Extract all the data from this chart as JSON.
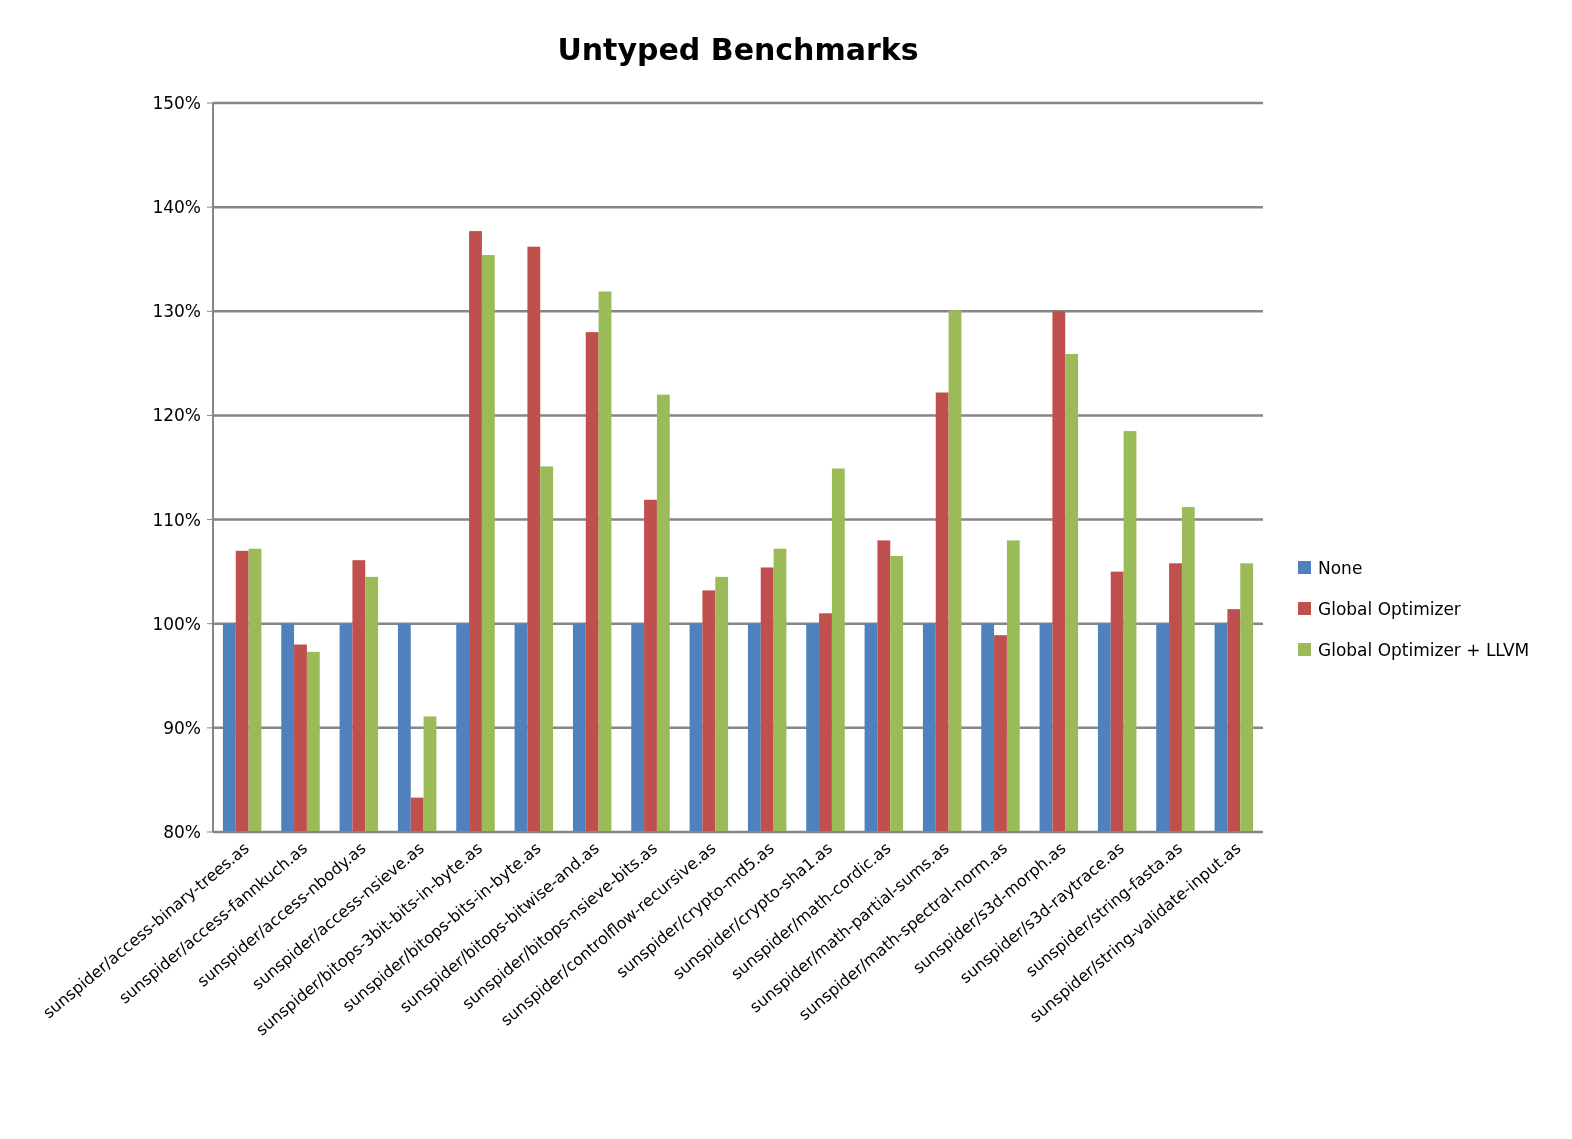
{
  "chart_data": {
    "type": "bar",
    "title": "Untyped Benchmarks",
    "categories": [
      "sunspider/access-binary-trees.as",
      "sunspider/access-fannkuch.as",
      "sunspider/access-nbody.as",
      "sunspider/access-nsieve.as",
      "sunspider/bitops-3bit-bits-in-byte.as",
      "sunspider/bitops-bits-in-byte.as",
      "sunspider/bitops-bitwise-and.as",
      "sunspider/bitops-nsieve-bits.as",
      "sunspider/controlflow-recursive.as",
      "sunspider/crypto-md5.as",
      "sunspider/crypto-sha1.as",
      "sunspider/math-cordic.as",
      "sunspider/math-partial-sums.as",
      "sunspider/math-spectral-norm.as",
      "sunspider/s3d-morph.as",
      "sunspider/s3d-raytrace.as",
      "sunspider/string-fasta.as",
      "sunspider/string-validate-input.as"
    ],
    "series": [
      {
        "name": "None",
        "color": "#4f81bd",
        "values": [
          100,
          100,
          100,
          100,
          100,
          100,
          100,
          100,
          100,
          100,
          100,
          100,
          100,
          100,
          100,
          100,
          100,
          100
        ]
      },
      {
        "name": "Global Optimizer",
        "color": "#c0504d",
        "values": [
          107.0,
          98.0,
          106.1,
          83.3,
          137.7,
          136.2,
          128.0,
          111.9,
          103.2,
          105.4,
          101.0,
          108.0,
          122.2,
          98.9,
          130.0,
          105.0,
          105.8,
          101.4
        ]
      },
      {
        "name": "Global Optimizer + LLVM",
        "color": "#9bbb59",
        "values": [
          107.2,
          97.3,
          104.5,
          91.1,
          135.4,
          115.1,
          131.9,
          122.0,
          104.5,
          107.2,
          114.9,
          106.5,
          130.1,
          108.0,
          125.9,
          118.5,
          111.2,
          105.8
        ]
      }
    ],
    "ylim": [
      80,
      150
    ],
    "yticks": [
      {
        "value": 80,
        "label": "80%"
      },
      {
        "value": 90,
        "label": "90%"
      },
      {
        "value": 100,
        "label": "100%"
      },
      {
        "value": 110,
        "label": "110%"
      },
      {
        "value": 120,
        "label": "120%"
      },
      {
        "value": 130,
        "label": "130%"
      },
      {
        "value": 140,
        "label": "140%"
      },
      {
        "value": 150,
        "label": "150%"
      }
    ],
    "grid": "y",
    "legend": "right"
  }
}
